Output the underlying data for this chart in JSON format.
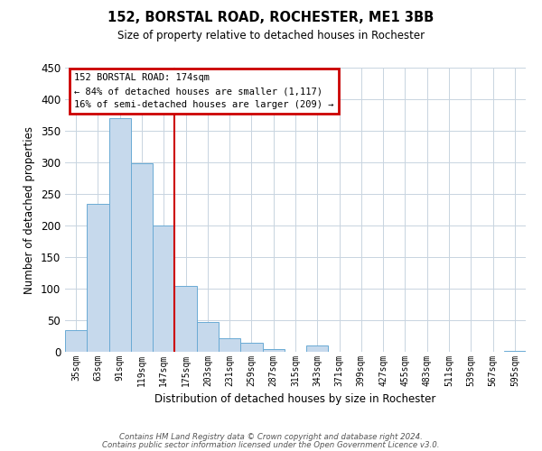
{
  "title": "152, BORSTAL ROAD, ROCHESTER, ME1 3BB",
  "subtitle": "Size of property relative to detached houses in Rochester",
  "xlabel": "Distribution of detached houses by size in Rochester",
  "ylabel": "Number of detached properties",
  "bar_color": "#c6d9ec",
  "bar_edge_color": "#6aaad4",
  "background_color": "#ffffff",
  "grid_color": "#c8d4e0",
  "annotation_box_color": "#cc0000",
  "vline_color": "#cc0000",
  "annotation_title": "152 BORSTAL ROAD: 174sqm",
  "annotation_line1": "← 84% of detached houses are smaller (1,117)",
  "annotation_line2": "16% of semi-detached houses are larger (209) →",
  "categories": [
    "35sqm",
    "63sqm",
    "91sqm",
    "119sqm",
    "147sqm",
    "175sqm",
    "203sqm",
    "231sqm",
    "259sqm",
    "287sqm",
    "315sqm",
    "343sqm",
    "371sqm",
    "399sqm",
    "427sqm",
    "455sqm",
    "483sqm",
    "511sqm",
    "539sqm",
    "567sqm",
    "595sqm"
  ],
  "values": [
    35,
    234,
    370,
    298,
    200,
    105,
    47,
    22,
    15,
    4,
    0,
    10,
    0,
    0,
    0,
    0,
    0,
    0,
    0,
    0,
    2
  ],
  "ylim": [
    0,
    450
  ],
  "yticks": [
    0,
    50,
    100,
    150,
    200,
    250,
    300,
    350,
    400,
    450
  ],
  "vline_index": 4.5,
  "footnote1": "Contains HM Land Registry data © Crown copyright and database right 2024.",
  "footnote2": "Contains public sector information licensed under the Open Government Licence v3.0."
}
